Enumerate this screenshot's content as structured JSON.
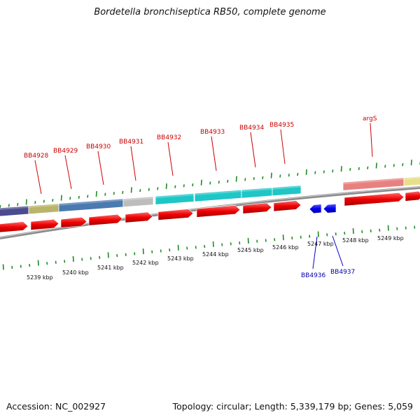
{
  "header": {
    "title": "Bordetella bronchiseptica RB50, complete genome"
  },
  "footer": {
    "accession": "Accession: NC_002927",
    "topology": "Topology: circular; Length: 5,339,179 bp; Genes: 5,059"
  },
  "colors": {
    "cds_forward": "#ee0000",
    "cds_reverse": "#0000ee",
    "label_forward": "#cc0000",
    "label_reverse": "#0000aa",
    "tick": "#228b22",
    "backbone": "#888888"
  },
  "scale": {
    "unit": "kbp",
    "labels": [
      "5239 kbp",
      "5240 kbp",
      "5241 kbp",
      "5242 kbp",
      "5243 kbp",
      "5244 kbp",
      "5245 kbp",
      "5246 kbp",
      "5247 kbp",
      "5248 kbp",
      "5249 kbp"
    ]
  },
  "genes_forward": [
    "BB4928",
    "BB4929",
    "BB4930",
    "BB4931",
    "BB4932",
    "BB4933",
    "BB4934",
    "BB4935",
    "argS"
  ],
  "genes_reverse": [
    "BB4936",
    "BB4937"
  ],
  "cog_blocks": [
    {
      "color": "#4b4b8f"
    },
    {
      "color": "#b8b46a"
    },
    {
      "color": "#4a7ab0"
    },
    {
      "color": "#bdbdbd"
    },
    {
      "color": "#1fc6c6"
    },
    {
      "color": "#1fc6c6"
    },
    {
      "color": "#1fc6c6"
    },
    {
      "color": "#1fc6c6"
    },
    {
      "color": "#e98080"
    },
    {
      "color": "#e8df8c"
    }
  ]
}
